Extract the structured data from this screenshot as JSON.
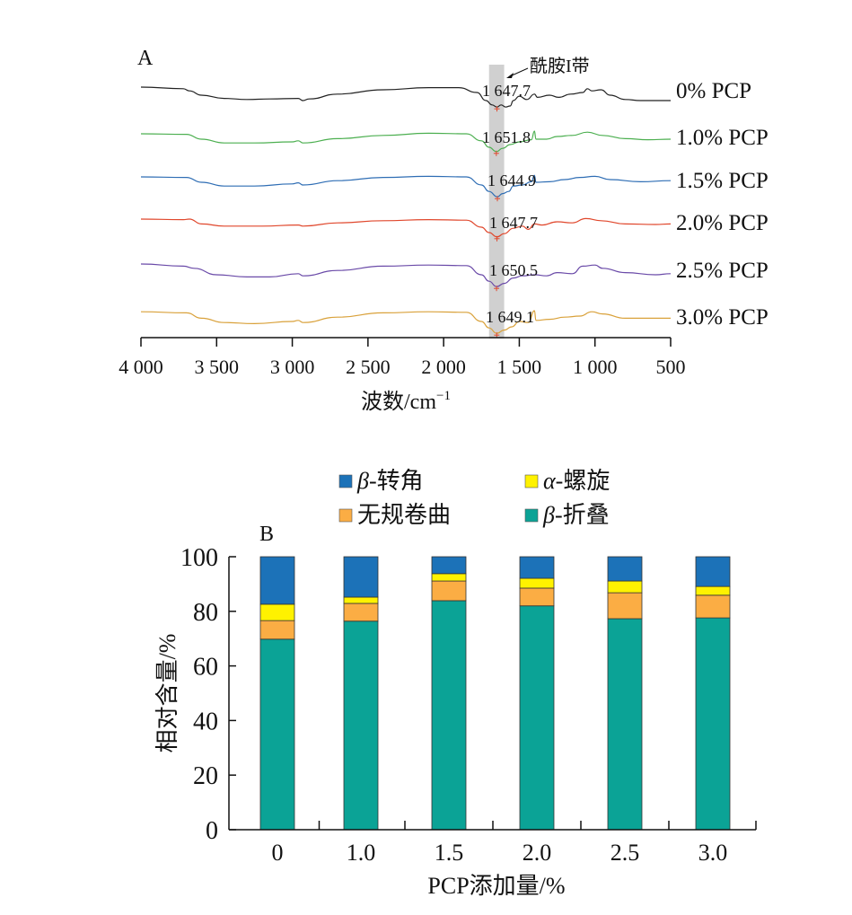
{
  "chart_data": [
    {
      "panel": "A",
      "type": "line",
      "title": "",
      "xlabel": "波数/cm",
      "xlabel_superscript": "−1",
      "ylabel": "",
      "xlim": [
        4000,
        500
      ],
      "x_reversed": true,
      "x_ticks": [
        4000,
        3500,
        3000,
        2500,
        2000,
        1500,
        1000,
        500
      ],
      "x_tick_labels": [
        "4 000",
        "3 500",
        "3 000",
        "2 500",
        "2 000",
        "1 500",
        "1 000",
        "500"
      ],
      "y_axis_visible": false,
      "grid": false,
      "highlight_band": {
        "from": 1700,
        "to": 1600,
        "color": "#d0d0d0",
        "label": "酰胺I带"
      },
      "series": [
        {
          "name": "0% PCP",
          "color": "#222222",
          "peak_label": "1 647.7",
          "peak": 1647.7,
          "points": [
            [
              4000,
              0.55
            ],
            [
              3720,
              0.52
            ],
            [
              3680,
              0.48
            ],
            [
              3600,
              0.4
            ],
            [
              3450,
              0.34
            ],
            [
              3300,
              0.32
            ],
            [
              3150,
              0.33
            ],
            [
              2960,
              0.34
            ],
            [
              2930,
              0.3
            ],
            [
              2890,
              0.33
            ],
            [
              2700,
              0.42
            ],
            [
              2400,
              0.5
            ],
            [
              2100,
              0.54
            ],
            [
              1900,
              0.54
            ],
            [
              1780,
              0.45
            ],
            [
              1720,
              0.3
            ],
            [
              1680,
              0.22
            ],
            [
              1647,
              0.18
            ],
            [
              1620,
              0.22
            ],
            [
              1590,
              0.18
            ],
            [
              1560,
              0.2
            ],
            [
              1540,
              0.3
            ],
            [
              1500,
              0.38
            ],
            [
              1450,
              0.32
            ],
            [
              1400,
              0.42
            ],
            [
              1380,
              0.36
            ],
            [
              1300,
              0.4
            ],
            [
              1240,
              0.36
            ],
            [
              1160,
              0.42
            ],
            [
              1080,
              0.45
            ],
            [
              1050,
              0.52
            ],
            [
              1020,
              0.48
            ],
            [
              960,
              0.5
            ],
            [
              900,
              0.4
            ],
            [
              800,
              0.32
            ],
            [
              700,
              0.3
            ],
            [
              500,
              0.3
            ]
          ]
        },
        {
          "name": "1.0% PCP",
          "color": "#4caf50",
          "peak_label": "1 651.8",
          "peak": 1651.8,
          "points": [
            [
              4000,
              0.55
            ],
            [
              3700,
              0.54
            ],
            [
              3600,
              0.45
            ],
            [
              3450,
              0.38
            ],
            [
              3250,
              0.38
            ],
            [
              3000,
              0.4
            ],
            [
              2960,
              0.42
            ],
            [
              2930,
              0.38
            ],
            [
              2700,
              0.46
            ],
            [
              2400,
              0.52
            ],
            [
              2100,
              0.56
            ],
            [
              1850,
              0.55
            ],
            [
              1750,
              0.42
            ],
            [
              1700,
              0.3
            ],
            [
              1651,
              0.22
            ],
            [
              1610,
              0.28
            ],
            [
              1560,
              0.35
            ],
            [
              1500,
              0.4
            ],
            [
              1420,
              0.44
            ],
            [
              1400,
              0.6
            ],
            [
              1390,
              0.45
            ],
            [
              1320,
              0.45
            ],
            [
              1250,
              0.5
            ],
            [
              1150,
              0.52
            ],
            [
              1050,
              0.58
            ],
            [
              950,
              0.52
            ],
            [
              800,
              0.46
            ],
            [
              650,
              0.44
            ],
            [
              500,
              0.45
            ]
          ]
        },
        {
          "name": "1.5% PCP",
          "color": "#2e6db4",
          "peak_label": "1 644.9",
          "peak": 1644.9,
          "points": [
            [
              4000,
              0.55
            ],
            [
              3700,
              0.54
            ],
            [
              3600,
              0.45
            ],
            [
              3450,
              0.38
            ],
            [
              3250,
              0.38
            ],
            [
              3000,
              0.42
            ],
            [
              2960,
              0.44
            ],
            [
              2930,
              0.4
            ],
            [
              2700,
              0.48
            ],
            [
              2400,
              0.54
            ],
            [
              2100,
              0.56
            ],
            [
              1850,
              0.55
            ],
            [
              1750,
              0.4
            ],
            [
              1700,
              0.28
            ],
            [
              1645,
              0.18
            ],
            [
              1610,
              0.24
            ],
            [
              1570,
              0.28
            ],
            [
              1540,
              0.38
            ],
            [
              1480,
              0.4
            ],
            [
              1420,
              0.46
            ],
            [
              1400,
              0.58
            ],
            [
              1390,
              0.45
            ],
            [
              1300,
              0.46
            ],
            [
              1200,
              0.5
            ],
            [
              1100,
              0.54
            ],
            [
              1000,
              0.56
            ],
            [
              900,
              0.5
            ],
            [
              700,
              0.46
            ],
            [
              500,
              0.48
            ]
          ]
        },
        {
          "name": "2.0% PCP",
          "color": "#e0472c",
          "peak_label": "1 647.7",
          "peak": 1647.7,
          "points": [
            [
              4000,
              0.55
            ],
            [
              3720,
              0.54
            ],
            [
              3680,
              0.55
            ],
            [
              3600,
              0.46
            ],
            [
              3450,
              0.42
            ],
            [
              3200,
              0.42
            ],
            [
              2960,
              0.44
            ],
            [
              2930,
              0.42
            ],
            [
              2700,
              0.48
            ],
            [
              2400,
              0.52
            ],
            [
              2100,
              0.54
            ],
            [
              1850,
              0.53
            ],
            [
              1750,
              0.4
            ],
            [
              1700,
              0.3
            ],
            [
              1647,
              0.22
            ],
            [
              1600,
              0.28
            ],
            [
              1540,
              0.38
            ],
            [
              1480,
              0.42
            ],
            [
              1440,
              0.36
            ],
            [
              1400,
              0.46
            ],
            [
              1350,
              0.44
            ],
            [
              1250,
              0.5
            ],
            [
              1150,
              0.48
            ],
            [
              1060,
              0.56
            ],
            [
              960,
              0.52
            ],
            [
              800,
              0.46
            ],
            [
              600,
              0.45
            ],
            [
              500,
              0.46
            ]
          ]
        },
        {
          "name": "2.5% PCP",
          "color": "#6a4aa8",
          "peak_label": "1 650.5",
          "peak": 1650.5,
          "points": [
            [
              4000,
              0.6
            ],
            [
              3720,
              0.56
            ],
            [
              3650,
              0.52
            ],
            [
              3500,
              0.4
            ],
            [
              3300,
              0.36
            ],
            [
              3150,
              0.36
            ],
            [
              2960,
              0.42
            ],
            [
              2930,
              0.38
            ],
            [
              2700,
              0.48
            ],
            [
              2400,
              0.56
            ],
            [
              2100,
              0.58
            ],
            [
              1850,
              0.57
            ],
            [
              1750,
              0.4
            ],
            [
              1700,
              0.28
            ],
            [
              1650,
              0.18
            ],
            [
              1600,
              0.24
            ],
            [
              1540,
              0.34
            ],
            [
              1480,
              0.38
            ],
            [
              1400,
              0.4
            ],
            [
              1320,
              0.38
            ],
            [
              1250,
              0.44
            ],
            [
              1150,
              0.42
            ],
            [
              1080,
              0.56
            ],
            [
              1000,
              0.58
            ],
            [
              950,
              0.52
            ],
            [
              800,
              0.44
            ],
            [
              600,
              0.4
            ],
            [
              500,
              0.42
            ]
          ]
        },
        {
          "name": "3.0% PCP",
          "color": "#d9a13a",
          "peak_label": "1 649.1",
          "peak": 1649.1,
          "points": [
            [
              4000,
              0.58
            ],
            [
              3700,
              0.56
            ],
            [
              3600,
              0.46
            ],
            [
              3450,
              0.38
            ],
            [
              3250,
              0.36
            ],
            [
              3000,
              0.4
            ],
            [
              2960,
              0.42
            ],
            [
              2930,
              0.38
            ],
            [
              2700,
              0.48
            ],
            [
              2400,
              0.56
            ],
            [
              2100,
              0.58
            ],
            [
              1850,
              0.57
            ],
            [
              1750,
              0.4
            ],
            [
              1700,
              0.28
            ],
            [
              1649,
              0.18
            ],
            [
              1600,
              0.24
            ],
            [
              1550,
              0.3
            ],
            [
              1500,
              0.4
            ],
            [
              1440,
              0.38
            ],
            [
              1400,
              0.6
            ],
            [
              1390,
              0.42
            ],
            [
              1300,
              0.44
            ],
            [
              1200,
              0.48
            ],
            [
              1100,
              0.5
            ],
            [
              1020,
              0.58
            ],
            [
              950,
              0.54
            ],
            [
              800,
              0.46
            ],
            [
              650,
              0.46
            ],
            [
              500,
              0.46
            ]
          ]
        }
      ]
    },
    {
      "panel": "B",
      "type": "bar",
      "stacked": true,
      "title": "",
      "xlabel": "PCP添加量/%",
      "ylabel": "相对含量/%",
      "ylim": [
        0,
        100
      ],
      "y_ticks": [
        0,
        20,
        40,
        60,
        80,
        100
      ],
      "grid": false,
      "legend_position": "top",
      "categories": [
        "0",
        "1.0",
        "1.5",
        "2.0",
        "2.5",
        "3.0"
      ],
      "series": [
        {
          "name": "β-折叠",
          "name_prefix": "β",
          "name_suffix": "-折叠",
          "color": "#0ba396",
          "values": [
            69.8,
            76.4,
            83.9,
            82.0,
            77.3,
            77.6
          ]
        },
        {
          "name": "无规卷曲",
          "name_prefix": "",
          "name_suffix": "无规卷曲",
          "color": "#fbad44",
          "values": [
            6.8,
            6.5,
            7.2,
            6.5,
            9.5,
            8.3
          ]
        },
        {
          "name": "α-螺旋",
          "name_prefix": "α",
          "name_suffix": "-螺旋",
          "color": "#fff200",
          "values": [
            6.0,
            2.3,
            2.7,
            3.6,
            4.3,
            3.2
          ]
        },
        {
          "name": "β-转角",
          "name_prefix": "β",
          "name_suffix": "-转角",
          "color": "#1c72b8",
          "values": [
            17.4,
            14.8,
            6.2,
            7.9,
            8.9,
            10.9
          ]
        }
      ],
      "legend_order": [
        "β-转角",
        "α-螺旋",
        "无规卷曲",
        "β-折叠"
      ]
    }
  ]
}
